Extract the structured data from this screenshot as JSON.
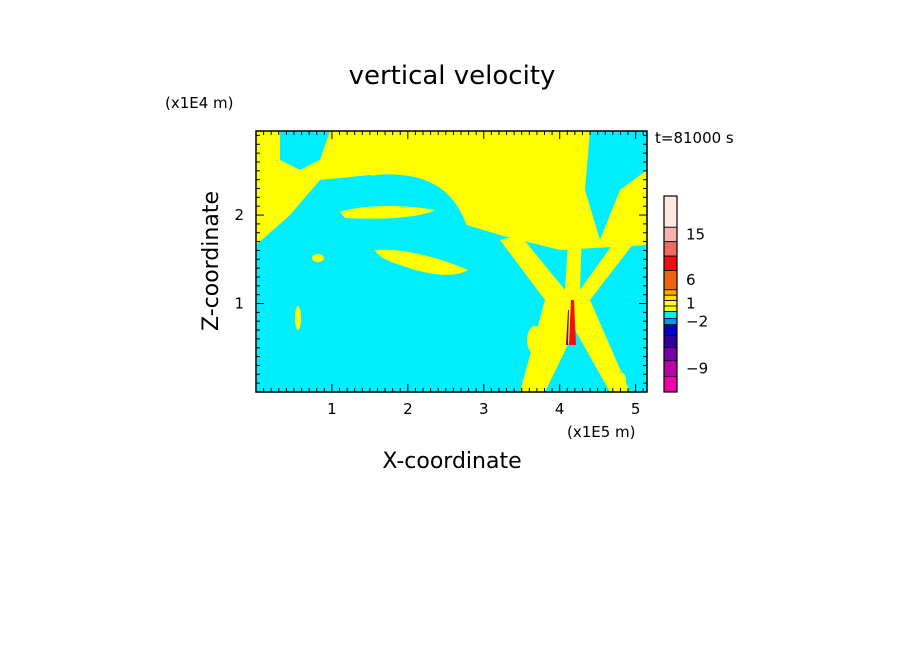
{
  "chart_data": {
    "type": "heatmap",
    "title": "vertical velocity",
    "xlabel": "X-coordinate",
    "ylabel": "Z-coordinate",
    "x_unit": "(x1E5 m)",
    "y_unit": "(x1E4 m)",
    "time_label": "t=81000 s",
    "xlim": [
      0,
      5.15
    ],
    "ylim": [
      0,
      2.95
    ],
    "x_ticks": [
      1,
      2,
      3,
      4,
      5
    ],
    "y_ticks": [
      1,
      2
    ],
    "colorbar": {
      "tick_labels": [
        {
          "label": "15",
          "value": 15
        },
        {
          "label": "6",
          "value": 6
        },
        {
          "label": "1",
          "value": 1
        },
        {
          "label": "−2",
          "value": -2
        },
        {
          "label": "−9",
          "value": -9
        }
      ],
      "levels_top_to_bottom": [
        {
          "color": "#fde8e4"
        },
        {
          "color": "#f6b3ad"
        },
        {
          "color": "#ee6b63"
        },
        {
          "color": "#ee1111"
        },
        {
          "color": "#ee6611"
        },
        {
          "color": "#ffaa00"
        },
        {
          "color": "#ffdd00"
        },
        {
          "color": "#ffff33"
        },
        {
          "color": "#ffff00"
        },
        {
          "color": "#00eeff"
        },
        {
          "color": "#0099ff"
        },
        {
          "color": "#0000cc"
        },
        {
          "color": "#330099"
        },
        {
          "color": "#7700aa"
        },
        {
          "color": "#bb00aa"
        },
        {
          "color": "#ee00aa"
        }
      ]
    },
    "field": {
      "background_level": "#00eeff",
      "positive_level": "#ffff00",
      "description_regions": [
        {
          "level": "#ffff00",
          "x": [
            0,
            5.15
          ],
          "z": [
            1.65,
            2.95
          ]
        },
        {
          "level": "#00eeff",
          "x": [
            0.55,
            2.75
          ],
          "z": [
            1.75,
            2.45
          ]
        },
        {
          "level": "#ffff00",
          "x": [
            1.1,
            2.3
          ],
          "z": [
            1.95,
            2.1
          ]
        },
        {
          "level": "#ffff00",
          "x": [
            1.6,
            2.8
          ],
          "z": [
            1.3,
            1.55
          ]
        },
        {
          "level": "#ffff00",
          "x": [
            3.55,
            4.75
          ],
          "z": [
            0,
            2.95
          ]
        },
        {
          "level": "#00eeff",
          "x": [
            3.85,
            4.35
          ],
          "z": [
            0,
            0.9
          ]
        },
        {
          "level": "#ee1111",
          "x": [
            4.08,
            4.14
          ],
          "z": [
            0.55,
            1.1
          ]
        }
      ]
    }
  }
}
